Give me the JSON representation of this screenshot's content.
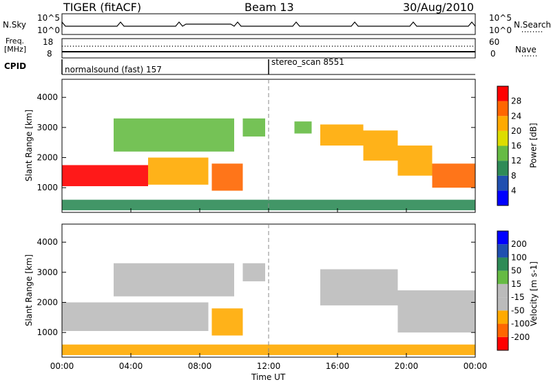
{
  "header": {
    "title": "TIGER (fitACF)",
    "beam": "Beam 13",
    "date": "30/Aug/2010"
  },
  "top_panels": {
    "nsky_label": "N.Sky",
    "nsky_axis": {
      "top": "10^5",
      "bottom": "10^0"
    },
    "nsearch_label": "N.Search",
    "nsearch_axis": {
      "top": "10^5",
      "bottom": "10^0"
    },
    "freq_label": "Freq.",
    "freq_unit": "[MHz]",
    "freq_axis": {
      "top": "18",
      "bottom": "8"
    },
    "nave_label": "Nave",
    "nave_axis": {
      "top": "60",
      "bottom": "0"
    },
    "cpid_label": "CPID",
    "cpid_segments": [
      {
        "name": "normalsound (fast) 157",
        "start_hour": 0.0
      },
      {
        "name": "stereo_scan 8551",
        "start_hour": 12.0
      }
    ]
  },
  "x_axis": {
    "label": "Time UT",
    "ticks": [
      "00:00",
      "04:00",
      "08:00",
      "12:00",
      "16:00",
      "20:00",
      "00:00"
    ],
    "tick_hours": [
      0,
      4,
      8,
      12,
      16,
      20,
      24
    ]
  },
  "colors": {
    "power_scale": [
      "#0000ff",
      "#2050b0",
      "#2e8b57",
      "#66bb44",
      "#dddd00",
      "#ffaa00",
      "#ff6600",
      "#ff0000"
    ],
    "velocity_scale": [
      "#0000ff",
      "#2050b0",
      "#2e8b57",
      "#66bb44",
      "#bbbbbb",
      "#bbbbbb",
      "#ffaa00",
      "#ff6600",
      "#ff0000"
    ],
    "background_gray": "#bbbbbb"
  },
  "chart_data": [
    {
      "type": "heatmap",
      "name": "Power",
      "ylabel": "Slant Range [km]",
      "colorbar_label": "Power [dB]",
      "colorbar_ticks": [
        "4",
        "8",
        "12",
        "16",
        "20",
        "24",
        "28"
      ],
      "y_ticks": [
        "1000",
        "2000",
        "3000",
        "4000"
      ],
      "xlim": [
        0,
        24
      ],
      "ylim": [
        180,
        4600
      ],
      "regions": [
        {
          "start_hour": 0.0,
          "end_hour": 5.0,
          "range_low_km": 1050,
          "range_high_km": 1750,
          "power_db": 28
        },
        {
          "start_hour": 5.0,
          "end_hour": 8.5,
          "range_low_km": 1100,
          "range_high_km": 2000,
          "power_db": 22
        },
        {
          "start_hour": 8.7,
          "end_hour": 10.5,
          "range_low_km": 900,
          "range_high_km": 1800,
          "power_db": 26
        },
        {
          "start_hour": 3.0,
          "end_hour": 10.0,
          "range_low_km": 2200,
          "range_high_km": 3300,
          "power_db": 14
        },
        {
          "start_hour": 10.5,
          "end_hour": 11.8,
          "range_low_km": 2700,
          "range_high_km": 3300,
          "power_db": 12
        },
        {
          "start_hour": 13.5,
          "end_hour": 14.5,
          "range_low_km": 2800,
          "range_high_km": 3200,
          "power_db": 12
        },
        {
          "start_hour": 15.0,
          "end_hour": 17.5,
          "range_low_km": 2400,
          "range_high_km": 3100,
          "power_db": 20
        },
        {
          "start_hour": 17.5,
          "end_hour": 19.5,
          "range_low_km": 1900,
          "range_high_km": 2900,
          "power_db": 22
        },
        {
          "start_hour": 19.5,
          "end_hour": 21.5,
          "range_low_km": 1400,
          "range_high_km": 2400,
          "power_db": 22
        },
        {
          "start_hour": 21.5,
          "end_hour": 24.0,
          "range_low_km": 1000,
          "range_high_km": 1800,
          "power_db": 26
        },
        {
          "start_hour": 0.0,
          "end_hour": 24.0,
          "range_low_km": 250,
          "range_high_km": 600,
          "power_db": 8
        }
      ]
    },
    {
      "type": "heatmap",
      "name": "Velocity",
      "ylabel": "Slant Range [km]",
      "colorbar_label": "Velocity [m s-1]",
      "colorbar_ticks": [
        "200",
        "100",
        "50",
        "15",
        "-15",
        "-50",
        "-100",
        "-200"
      ],
      "y_ticks": [
        "1000",
        "2000",
        "3000",
        "4000"
      ],
      "xlim": [
        0,
        24
      ],
      "ylim": [
        180,
        4600
      ],
      "regions": [
        {
          "start_hour": 0.0,
          "end_hour": 8.5,
          "range_low_km": 1050,
          "range_high_km": 2000,
          "velocity_ms": 0
        },
        {
          "start_hour": 8.7,
          "end_hour": 10.5,
          "range_low_km": 900,
          "range_high_km": 1800,
          "velocity_ms": -80
        },
        {
          "start_hour": 3.0,
          "end_hour": 10.0,
          "range_low_km": 2200,
          "range_high_km": 3300,
          "velocity_ms": 0
        },
        {
          "start_hour": 10.5,
          "end_hour": 11.8,
          "range_low_km": 2700,
          "range_high_km": 3300,
          "velocity_ms": 0
        },
        {
          "start_hour": 15.0,
          "end_hour": 19.5,
          "range_low_km": 1900,
          "range_high_km": 3100,
          "velocity_ms": 0
        },
        {
          "start_hour": 19.5,
          "end_hour": 24.0,
          "range_low_km": 1000,
          "range_high_km": 2400,
          "velocity_ms": 0
        },
        {
          "start_hour": 0.0,
          "end_hour": 24.0,
          "range_low_km": 250,
          "range_high_km": 600,
          "velocity_ms": -60
        }
      ]
    }
  ]
}
